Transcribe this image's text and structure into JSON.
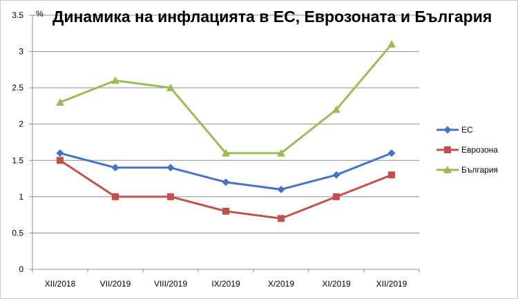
{
  "chart_data": {
    "type": "line",
    "title": "Динамика на инфлацията в ЕС, Еврозоната и България",
    "ylabel": "%",
    "xlabel": "",
    "categories": [
      "XII/2018",
      "VII/2019",
      "VIII/2019",
      "IX/2019",
      "X/2019",
      "XI/2019",
      "XII/2019"
    ],
    "ylim": [
      0,
      3.5
    ],
    "yticks": [
      "0",
      "0.5",
      "1",
      "1.5",
      "2",
      "2.5",
      "3",
      "3.5"
    ],
    "grid": "horizontal",
    "legend_position": "right",
    "series": [
      {
        "name": "ЕС",
        "values": [
          1.6,
          1.4,
          1.4,
          1.2,
          1.1,
          1.3,
          1.6
        ],
        "color": "#4472C4",
        "marker": "diamond"
      },
      {
        "name": "Еврозона",
        "values": [
          1.5,
          1.0,
          1.0,
          0.8,
          0.7,
          1.0,
          1.3
        ],
        "color": "#C0504D",
        "marker": "square"
      },
      {
        "name": "България",
        "values": [
          2.3,
          2.6,
          2.5,
          1.6,
          1.6,
          2.2,
          3.1
        ],
        "color": "#9BBB59",
        "marker": "triangle"
      }
    ]
  }
}
